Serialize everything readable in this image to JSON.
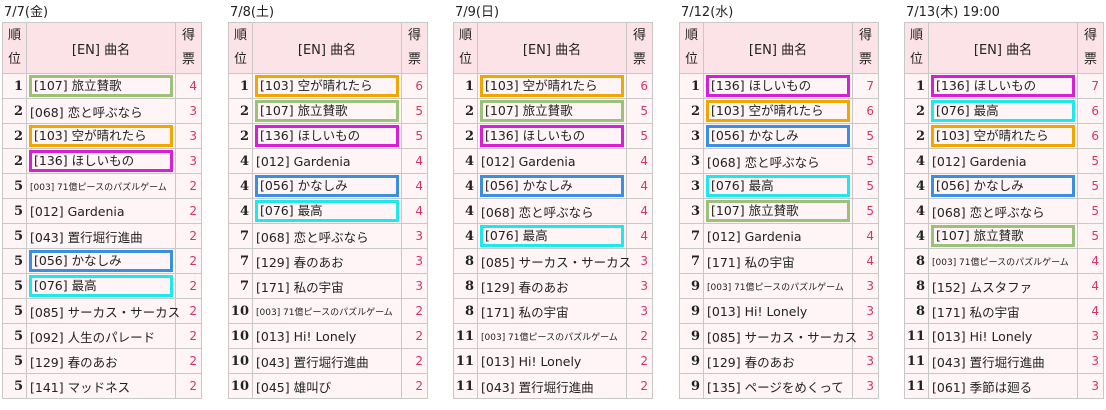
{
  "header": {
    "rank_label": [
      "順",
      "位"
    ],
    "title_label": "[EN] 曲名",
    "votes_label": [
      "得",
      "票"
    ]
  },
  "colors": {
    "green": "#9cc27a",
    "orange": "#f0a800",
    "magenta": "#d61fd6",
    "blue": "#3a8fe0",
    "cyan": "#1ee8e8",
    "vote_text": "#d6336c",
    "header_bg": "#fce3e8",
    "cell_bg": "#fff5f7"
  },
  "panels": [
    {
      "date": "7/7(金)",
      "rows": [
        {
          "rank": "1",
          "title": "[107] 旅立賛歌",
          "votes": "4",
          "hl": "green"
        },
        {
          "rank": "2",
          "title": "[068] 恋と呼ぶなら",
          "votes": "3",
          "hl": ""
        },
        {
          "rank": "2",
          "title": "[103] 空が晴れたら",
          "votes": "3",
          "hl": "orange"
        },
        {
          "rank": "2",
          "title": "[136] ほしいもの",
          "votes": "3",
          "hl": "magenta"
        },
        {
          "rank": "5",
          "title": "[003] 71億ピースのパズルゲーム",
          "votes": "2",
          "hl": "",
          "small": true
        },
        {
          "rank": "5",
          "title": "[012] Gardenia",
          "votes": "2",
          "hl": ""
        },
        {
          "rank": "5",
          "title": "[043] 置行堀行進曲",
          "votes": "2",
          "hl": ""
        },
        {
          "rank": "5",
          "title": "[056] かなしみ",
          "votes": "2",
          "hl": "blue"
        },
        {
          "rank": "5",
          "title": "[076] 最高",
          "votes": "2",
          "hl": "cyan"
        },
        {
          "rank": "5",
          "title": "[085] サーカス・サーカス",
          "votes": "2",
          "hl": ""
        },
        {
          "rank": "5",
          "title": "[092] 人生のパレード",
          "votes": "2",
          "hl": ""
        },
        {
          "rank": "5",
          "title": "[129] 春のあお",
          "votes": "2",
          "hl": ""
        },
        {
          "rank": "5",
          "title": "[141] マッドネス",
          "votes": "2",
          "hl": ""
        }
      ]
    },
    {
      "date": "7/8(土)",
      "rows": [
        {
          "rank": "1",
          "title": "[103] 空が晴れたら",
          "votes": "6",
          "hl": "orange"
        },
        {
          "rank": "2",
          "title": "[107] 旅立賛歌",
          "votes": "5",
          "hl": "green"
        },
        {
          "rank": "2",
          "title": "[136] ほしいもの",
          "votes": "5",
          "hl": "magenta"
        },
        {
          "rank": "4",
          "title": "[012] Gardenia",
          "votes": "4",
          "hl": ""
        },
        {
          "rank": "4",
          "title": "[056] かなしみ",
          "votes": "4",
          "hl": "blue"
        },
        {
          "rank": "4",
          "title": "[076] 最高",
          "votes": "4",
          "hl": "cyan"
        },
        {
          "rank": "7",
          "title": "[068] 恋と呼ぶなら",
          "votes": "3",
          "hl": ""
        },
        {
          "rank": "7",
          "title": "[129] 春のあお",
          "votes": "3",
          "hl": ""
        },
        {
          "rank": "7",
          "title": "[171] 私の宇宙",
          "votes": "3",
          "hl": ""
        },
        {
          "rank": "10",
          "title": "[003] 71億ピースのパズルゲーム",
          "votes": "2",
          "hl": "",
          "small": true
        },
        {
          "rank": "10",
          "title": "[013] Hi! Lonely",
          "votes": "2",
          "hl": ""
        },
        {
          "rank": "10",
          "title": "[043] 置行堀行進曲",
          "votes": "2",
          "hl": ""
        },
        {
          "rank": "10",
          "title": "[045] 雄叫び",
          "votes": "2",
          "hl": ""
        }
      ]
    },
    {
      "date": "7/9(日)",
      "rows": [
        {
          "rank": "1",
          "title": "[103] 空が晴れたら",
          "votes": "6",
          "hl": "orange"
        },
        {
          "rank": "2",
          "title": "[107] 旅立賛歌",
          "votes": "5",
          "hl": "green"
        },
        {
          "rank": "2",
          "title": "[136] ほしいもの",
          "votes": "5",
          "hl": "magenta"
        },
        {
          "rank": "4",
          "title": "[012] Gardenia",
          "votes": "4",
          "hl": ""
        },
        {
          "rank": "4",
          "title": "[056] かなしみ",
          "votes": "4",
          "hl": "blue"
        },
        {
          "rank": "4",
          "title": "[068] 恋と呼ぶなら",
          "votes": "4",
          "hl": ""
        },
        {
          "rank": "4",
          "title": "[076] 最高",
          "votes": "4",
          "hl": "cyan"
        },
        {
          "rank": "8",
          "title": "[085] サーカス・サーカス",
          "votes": "3",
          "hl": ""
        },
        {
          "rank": "8",
          "title": "[129] 春のあお",
          "votes": "3",
          "hl": ""
        },
        {
          "rank": "8",
          "title": "[171] 私の宇宙",
          "votes": "3",
          "hl": ""
        },
        {
          "rank": "11",
          "title": "[003] 71億ピースのパズルゲーム",
          "votes": "2",
          "hl": "",
          "small": true
        },
        {
          "rank": "11",
          "title": "[013] Hi! Lonely",
          "votes": "2",
          "hl": ""
        },
        {
          "rank": "11",
          "title": "[043] 置行堀行進曲",
          "votes": "2",
          "hl": ""
        }
      ]
    },
    {
      "date": "7/12(水)",
      "rows": [
        {
          "rank": "1",
          "title": "[136] ほしいもの",
          "votes": "7",
          "hl": "magenta"
        },
        {
          "rank": "2",
          "title": "[103] 空が晴れたら",
          "votes": "6",
          "hl": "orange"
        },
        {
          "rank": "3",
          "title": "[056] かなしみ",
          "votes": "5",
          "hl": "blue"
        },
        {
          "rank": "3",
          "title": "[068] 恋と呼ぶなら",
          "votes": "5",
          "hl": ""
        },
        {
          "rank": "3",
          "title": "[076] 最高",
          "votes": "5",
          "hl": "cyan"
        },
        {
          "rank": "3",
          "title": "[107] 旅立賛歌",
          "votes": "5",
          "hl": "green"
        },
        {
          "rank": "7",
          "title": "[012] Gardenia",
          "votes": "4",
          "hl": ""
        },
        {
          "rank": "7",
          "title": "[171] 私の宇宙",
          "votes": "4",
          "hl": ""
        },
        {
          "rank": "9",
          "title": "[003] 71億ピースのパズルゲーム",
          "votes": "3",
          "hl": "",
          "small": true
        },
        {
          "rank": "9",
          "title": "[013] Hi! Lonely",
          "votes": "3",
          "hl": ""
        },
        {
          "rank": "9",
          "title": "[085] サーカス・サーカス",
          "votes": "3",
          "hl": ""
        },
        {
          "rank": "9",
          "title": "[129] 春のあお",
          "votes": "3",
          "hl": ""
        },
        {
          "rank": "9",
          "title": "[135] ページをめくって",
          "votes": "3",
          "hl": ""
        }
      ]
    },
    {
      "date": "7/13(木) 19:00",
      "rows": [
        {
          "rank": "1",
          "title": "[136] ほしいもの",
          "votes": "7",
          "hl": "magenta"
        },
        {
          "rank": "2",
          "title": "[076] 最高",
          "votes": "6",
          "hl": "cyan"
        },
        {
          "rank": "2",
          "title": "[103] 空が晴れたら",
          "votes": "6",
          "hl": "orange"
        },
        {
          "rank": "4",
          "title": "[012] Gardenia",
          "votes": "5",
          "hl": ""
        },
        {
          "rank": "4",
          "title": "[056] かなしみ",
          "votes": "5",
          "hl": "blue"
        },
        {
          "rank": "4",
          "title": "[068] 恋と呼ぶなら",
          "votes": "5",
          "hl": ""
        },
        {
          "rank": "4",
          "title": "[107] 旅立賛歌",
          "votes": "5",
          "hl": "green"
        },
        {
          "rank": "8",
          "title": "[003] 71億ピースのパズルゲーム",
          "votes": "4",
          "hl": "",
          "small": true
        },
        {
          "rank": "8",
          "title": "[152] ムスタファ",
          "votes": "4",
          "hl": ""
        },
        {
          "rank": "8",
          "title": "[171] 私の宇宙",
          "votes": "4",
          "hl": ""
        },
        {
          "rank": "11",
          "title": "[013] Hi! Lonely",
          "votes": "3",
          "hl": ""
        },
        {
          "rank": "11",
          "title": "[043] 置行堀行進曲",
          "votes": "3",
          "hl": ""
        },
        {
          "rank": "11",
          "title": "[061] 季節は廻る",
          "votes": "3",
          "hl": ""
        }
      ]
    }
  ]
}
